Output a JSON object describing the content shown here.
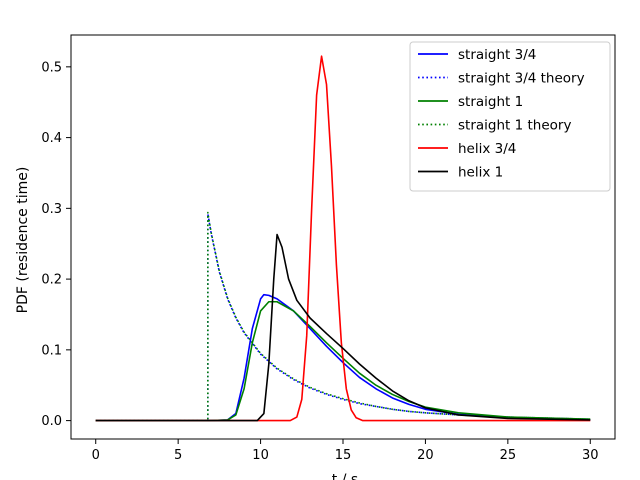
{
  "chart_data": {
    "type": "line",
    "title": "",
    "xlabel": "t / s",
    "ylabel": "PDF (residence time)",
    "xlim": [
      -1.5,
      31.5
    ],
    "ylim": [
      -0.026,
      0.545
    ],
    "xticks": [
      0,
      5,
      10,
      15,
      20,
      25,
      30
    ],
    "yticks": [
      0.0,
      0.1,
      0.2,
      0.3,
      0.4,
      0.5
    ],
    "xtick_labels": [
      "0",
      "5",
      "10",
      "15",
      "20",
      "25",
      "30"
    ],
    "ytick_labels": [
      "0.0",
      "0.1",
      "0.2",
      "0.3",
      "0.4",
      "0.5"
    ],
    "grid": false,
    "legend_position": "top-right",
    "series": [
      {
        "name": "straight 3/4",
        "color": "#0000ff",
        "style": "solid",
        "x": [
          0,
          7,
          8,
          8.5,
          9,
          9.5,
          10,
          10.2,
          10.5,
          11,
          12,
          13,
          14,
          15,
          16,
          17,
          18,
          19,
          20,
          22,
          25,
          30
        ],
        "y": [
          0,
          0,
          0.001,
          0.01,
          0.06,
          0.13,
          0.172,
          0.178,
          0.177,
          0.172,
          0.155,
          0.13,
          0.105,
          0.082,
          0.061,
          0.045,
          0.032,
          0.023,
          0.016,
          0.009,
          0.004,
          0.001
        ]
      },
      {
        "name": "straight 3/4 theory",
        "color": "#0000ff",
        "style": "dotted",
        "x": [
          0,
          6.8,
          6.8,
          7,
          7.5,
          8,
          8.5,
          9,
          10,
          11,
          12,
          13,
          14,
          15,
          16,
          17,
          18,
          19,
          20,
          22,
          25,
          30
        ],
        "y": [
          0,
          0,
          0.292,
          0.265,
          0.21,
          0.172,
          0.145,
          0.124,
          0.094,
          0.073,
          0.058,
          0.046,
          0.037,
          0.03,
          0.024,
          0.02,
          0.016,
          0.013,
          0.011,
          0.008,
          0.005,
          0.002
        ]
      },
      {
        "name": "straight 1",
        "color": "#008000",
        "style": "solid",
        "x": [
          0,
          7,
          8,
          8.5,
          9,
          9.5,
          10,
          10.5,
          11,
          12,
          13,
          14,
          15,
          16,
          17,
          18,
          19,
          20,
          22,
          25,
          30
        ],
        "y": [
          0,
          0,
          0.001,
          0.008,
          0.045,
          0.11,
          0.155,
          0.168,
          0.168,
          0.155,
          0.133,
          0.11,
          0.088,
          0.067,
          0.05,
          0.037,
          0.027,
          0.019,
          0.011,
          0.005,
          0.002
        ]
      },
      {
        "name": "straight 1 theory",
        "color": "#008000",
        "style": "dotted",
        "x": [
          0,
          6.8,
          6.8,
          7,
          7.5,
          8,
          8.5,
          9,
          10,
          11,
          12,
          13,
          14,
          15,
          16,
          17,
          18,
          19,
          20,
          22,
          25,
          30
        ],
        "y": [
          0,
          0,
          0.294,
          0.266,
          0.211,
          0.173,
          0.146,
          0.125,
          0.095,
          0.074,
          0.059,
          0.047,
          0.038,
          0.031,
          0.025,
          0.02,
          0.016,
          0.013,
          0.011,
          0.008,
          0.005,
          0.002
        ]
      },
      {
        "name": "helix 3/4",
        "color": "#ff0000",
        "style": "solid",
        "x": [
          0,
          11.8,
          12.2,
          12.5,
          12.8,
          13.1,
          13.4,
          13.7,
          14.0,
          14.3,
          14.6,
          14.9,
          15.2,
          15.5,
          15.8,
          16.2,
          30
        ],
        "y": [
          0,
          0,
          0.005,
          0.03,
          0.12,
          0.3,
          0.46,
          0.515,
          0.475,
          0.36,
          0.22,
          0.11,
          0.045,
          0.015,
          0.004,
          0,
          0
        ]
      },
      {
        "name": "helix 1",
        "color": "#000000",
        "style": "solid",
        "x": [
          0,
          9.8,
          10.2,
          10.5,
          10.8,
          11.0,
          11.3,
          11.7,
          12.2,
          13,
          14,
          15,
          16,
          17,
          18,
          19,
          20,
          22,
          25,
          30
        ],
        "y": [
          0,
          0,
          0.01,
          0.08,
          0.2,
          0.263,
          0.245,
          0.2,
          0.17,
          0.145,
          0.123,
          0.102,
          0.08,
          0.06,
          0.042,
          0.028,
          0.018,
          0.008,
          0.003,
          0.001
        ]
      }
    ]
  }
}
